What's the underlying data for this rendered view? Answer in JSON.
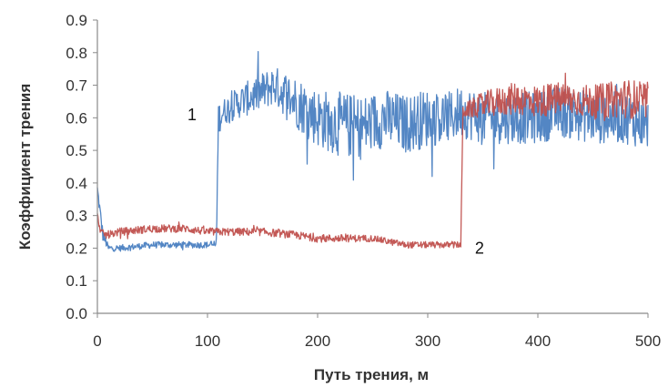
{
  "chart_data": {
    "type": "line",
    "title": "",
    "xlabel": "Путь трения, м",
    "ylabel": "Коэффициент трения",
    "xlim": [
      0,
      500
    ],
    "ylim": [
      0,
      0.9
    ],
    "x_ticks": [
      "0",
      "100",
      "200",
      "300",
      "400",
      "500"
    ],
    "y_ticks": [
      "0.0",
      "0.1",
      "0.2",
      "0.3",
      "0.4",
      "0.5",
      "0.6",
      "0.7",
      "0.8",
      "0.9"
    ],
    "grid": false,
    "legend": "none",
    "series": [
      {
        "name": "1",
        "color": "#4a7fc1",
        "x": [
          0,
          5,
          10,
          20,
          50,
          80,
          100,
          108,
          110,
          115,
          130,
          150,
          160,
          180,
          200,
          220,
          240,
          260,
          280,
          300,
          320,
          330,
          350,
          380,
          400,
          420,
          450,
          480,
          500
        ],
        "y": [
          0.38,
          0.24,
          0.2,
          0.2,
          0.21,
          0.21,
          0.21,
          0.21,
          0.6,
          0.62,
          0.65,
          0.68,
          0.7,
          0.65,
          0.6,
          0.58,
          0.57,
          0.6,
          0.58,
          0.6,
          0.6,
          0.62,
          0.6,
          0.6,
          0.6,
          0.62,
          0.6,
          0.6,
          0.58
        ],
        "amp": [
          0.02,
          0.02,
          0.01,
          0.01,
          0.01,
          0.01,
          0.01,
          0.02,
          0.05,
          0.04,
          0.05,
          0.06,
          0.06,
          0.08,
          0.09,
          0.1,
          0.1,
          0.09,
          0.09,
          0.09,
          0.08,
          0.08,
          0.08,
          0.08,
          0.08,
          0.08,
          0.08,
          0.08,
          0.08
        ]
      },
      {
        "name": "2",
        "color": "#c0504d",
        "x": [
          0,
          3,
          8,
          20,
          50,
          80,
          100,
          110,
          130,
          150,
          180,
          200,
          220,
          250,
          280,
          300,
          320,
          330,
          332,
          350,
          380,
          400,
          420,
          450,
          480,
          500
        ],
        "y": [
          0.3,
          0.25,
          0.24,
          0.25,
          0.26,
          0.26,
          0.25,
          0.25,
          0.25,
          0.25,
          0.24,
          0.23,
          0.23,
          0.23,
          0.21,
          0.21,
          0.21,
          0.21,
          0.62,
          0.64,
          0.66,
          0.65,
          0.66,
          0.65,
          0.66,
          0.65
        ],
        "amp": [
          0.01,
          0.01,
          0.012,
          0.012,
          0.012,
          0.012,
          0.012,
          0.012,
          0.012,
          0.012,
          0.012,
          0.012,
          0.012,
          0.01,
          0.01,
          0.01,
          0.01,
          0.01,
          0.02,
          0.04,
          0.05,
          0.05,
          0.05,
          0.05,
          0.06,
          0.06
        ]
      }
    ],
    "annotations": [
      {
        "text": "1",
        "x": 86,
        "y": 0.61
      },
      {
        "text": "2",
        "x": 347,
        "y": 0.2
      }
    ]
  }
}
